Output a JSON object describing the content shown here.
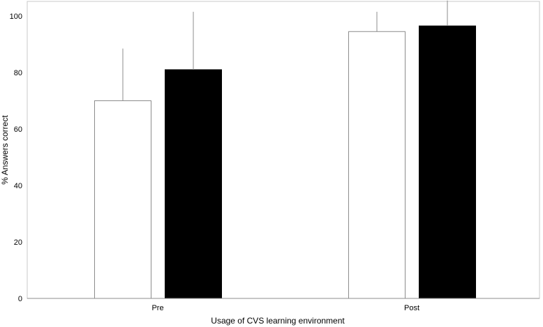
{
  "chart_data": {
    "type": "bar",
    "title": "",
    "xlabel": "Usage of CVS learning environment",
    "ylabel": "% Answers correct",
    "categories": [
      "Pre",
      "Post"
    ],
    "ylim": [
      0,
      100
    ],
    "yticks": [
      "0",
      "20",
      "40",
      "60",
      "80",
      "100"
    ],
    "grid": false,
    "legend": "none",
    "series": [
      {
        "color": "#ffffff",
        "stroke": "#8c8c8c",
        "values": [
          70,
          94.5
        ],
        "error_upper": [
          18.5,
          7
        ]
      },
      {
        "color": "#000000",
        "stroke": "#000000",
        "values": [
          81,
          96.5
        ],
        "error_upper": [
          20.5,
          9
        ]
      }
    ]
  }
}
